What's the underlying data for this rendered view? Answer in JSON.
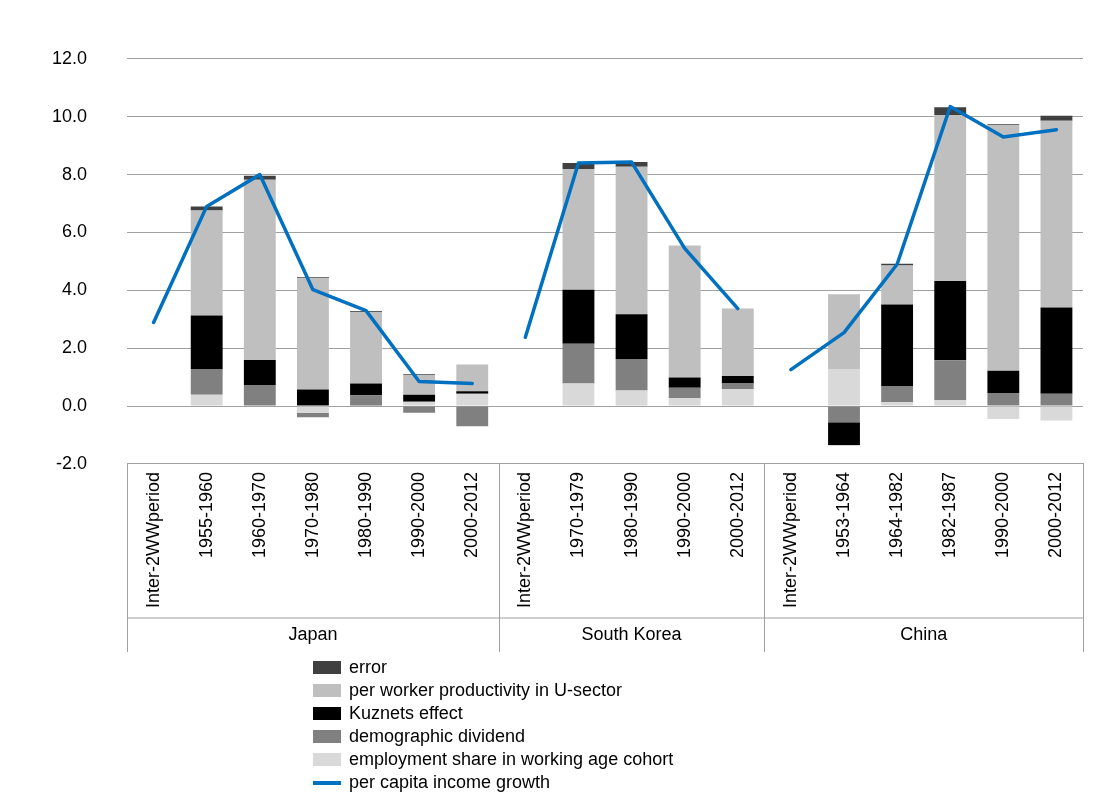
{
  "chart_data": {
    "type": "bar",
    "stacked": true,
    "grid": "y",
    "legend": "bottom",
    "marker": "none",
    "categories": [
      "Inter-2WWperiod",
      "1955-1960",
      "1960-1970",
      "1970-1980",
      "1980-1990",
      "1990-2000",
      "2000-2012",
      "Inter-2WWperiod",
      "1970-1979",
      "1980-1990",
      "1990-2000",
      "2000-2012",
      "Inter-2WWperiod",
      "1953-1964",
      "1964-1982",
      "1982-1987",
      "1990-2000",
      "2000-2012"
    ],
    "ylim": [
      -2,
      12
    ],
    "yticks": [
      {
        "value": -2,
        "label": "-2.0"
      },
      {
        "value": 0,
        "label": "0.0"
      },
      {
        "value": 2,
        "label": "2.0"
      },
      {
        "value": 4,
        "label": "4.0"
      },
      {
        "value": 6,
        "label": "6.0"
      },
      {
        "value": 8,
        "label": "8.0"
      },
      {
        "value": 10,
        "label": "10.0"
      },
      {
        "value": 12,
        "label": "12.0"
      }
    ],
    "series": [
      {
        "name": "employment share in working age cohort",
        "color": "#d9d9d9",
        "values": [
          null,
          0.39,
          null,
          -0.23,
          null,
          0.15,
          0.43,
          null,
          0.78,
          0.54,
          0.27,
          0.59,
          null,
          1.28,
          0.13,
          0.2,
          -0.45,
          -0.5
        ]
      },
      {
        "name": "demographic dividend",
        "color": "#808080",
        "values": [
          null,
          0.87,
          0.73,
          -0.16,
          0.37,
          -0.23,
          -0.7,
          null,
          1.37,
          1.09,
          0.36,
          0.19,
          null,
          -0.56,
          0.56,
          1.38,
          0.45,
          0.43
        ]
      },
      {
        "name": "Kuznets effect",
        "color": "#000000",
        "values": [
          null,
          1.87,
          0.86,
          0.57,
          0.41,
          0.24,
          0.08,
          null,
          1.87,
          1.54,
          0.36,
          0.26,
          null,
          -0.79,
          2.82,
          2.74,
          0.77,
          2.98
        ]
      },
      {
        "name": "per worker productivity in U-sector",
        "color": "#bfbfbf",
        "values": [
          null,
          3.63,
          6.23,
          3.85,
          2.47,
          0.68,
          0.93,
          null,
          4.17,
          5.1,
          4.56,
          2.33,
          null,
          2.58,
          1.35,
          5.74,
          8.49,
          6.45
        ]
      },
      {
        "name": "error",
        "color": "#404040",
        "values": [
          null,
          0.14,
          0.14,
          0.03,
          0.03,
          0.03,
          null,
          null,
          0.21,
          0.16,
          null,
          null,
          null,
          null,
          0.06,
          0.27,
          0.03,
          0.17
        ]
      },
      {
        "type": "line",
        "name": "per capita income growth",
        "color": "#0070c0",
        "values": [
          2.89,
          6.9,
          8.0,
          4.02,
          3.3,
          0.85,
          0.78,
          null,
          null,
          null,
          null,
          null,
          null,
          null,
          null,
          null,
          null,
          null
        ]
      },
      {
        "type": "line",
        "color": "#0070c0",
        "values": [
          null,
          null,
          null,
          null,
          null,
          null,
          null,
          2.38,
          8.4,
          8.43,
          5.45,
          3.37,
          null,
          null,
          null,
          null,
          null,
          null
        ]
      },
      {
        "type": "line",
        "color": "#0070c0",
        "values": [
          null,
          null,
          null,
          null,
          null,
          null,
          null,
          null,
          null,
          null,
          null,
          null,
          1.26,
          2.54,
          4.9,
          10.35,
          9.3,
          9.55
        ]
      }
    ],
    "annotations": [
      "Japan",
      "South Korea",
      "China"
    ]
  }
}
